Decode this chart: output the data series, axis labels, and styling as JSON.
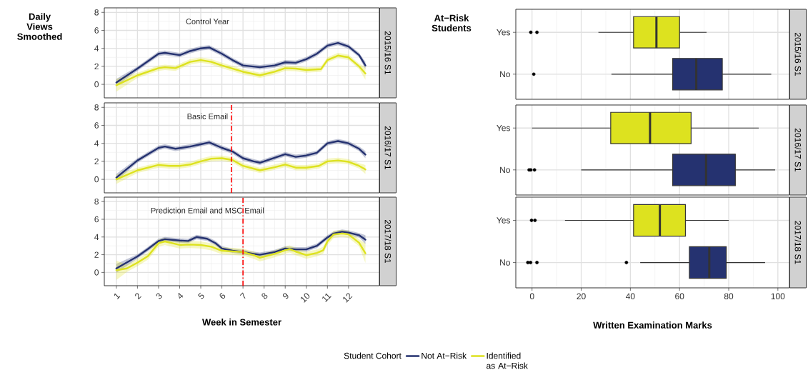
{
  "chart_data": [
    {
      "type": "line",
      "ylabel": "Daily Views Smoothed",
      "annotations": [
        "2015/16 S1",
        "Control Year"
      ],
      "xlim": [
        0.43,
        13.46
      ],
      "xticks": [
        1,
        2,
        3,
        4,
        5,
        6,
        7,
        8,
        9,
        10,
        11,
        12
      ],
      "ylim": [
        -1.5,
        8.5
      ],
      "yticks": [
        0,
        2,
        4,
        6,
        8
      ],
      "grid": true,
      "tick_labels": "y",
      "series": [
        {
          "color": "#253270",
          "x": [
            1,
            2,
            3,
            3.3,
            4,
            4.5,
            5,
            5.4,
            6,
            6.5,
            7,
            7.8,
            8.5,
            9,
            9.5,
            10,
            10.5,
            11,
            11.5,
            12,
            12.5,
            12.8
          ],
          "values": [
            0.2,
            1.75,
            3.4,
            3.5,
            3.25,
            3.7,
            4.0,
            4.1,
            3.4,
            2.7,
            2.1,
            1.9,
            2.1,
            2.45,
            2.4,
            2.8,
            3.4,
            4.3,
            4.6,
            4.2,
            3.25,
            2.1
          ],
          "lower": [
            -0.2,
            1.5,
            3.15,
            3.25,
            3.0,
            3.45,
            3.75,
            3.85,
            3.15,
            2.45,
            1.85,
            1.65,
            1.85,
            2.2,
            2.15,
            2.55,
            3.15,
            4.05,
            4.35,
            3.95,
            3.0,
            1.7
          ],
          "upper": [
            0.6,
            2.0,
            3.65,
            3.75,
            3.5,
            3.95,
            4.25,
            4.35,
            3.65,
            2.95,
            2.35,
            2.15,
            2.35,
            2.7,
            2.65,
            3.05,
            3.65,
            4.55,
            4.85,
            4.45,
            3.5,
            2.5
          ]
        },
        {
          "color": "#dde21f",
          "x": [
            1,
            2,
            3,
            3.3,
            3.8,
            4.5,
            5,
            5.5,
            6,
            7,
            7.8,
            8.5,
            9,
            9.5,
            10,
            10.7,
            11,
            11.5,
            12,
            12.5,
            12.8
          ],
          "values": [
            -0.1,
            1.0,
            1.8,
            1.9,
            1.8,
            2.5,
            2.7,
            2.5,
            2.1,
            1.4,
            1.0,
            1.4,
            1.8,
            1.75,
            1.6,
            1.7,
            2.7,
            3.2,
            3.0,
            2.0,
            1.2
          ],
          "lower": [
            -0.8,
            0.7,
            1.5,
            1.6,
            1.5,
            2.2,
            2.4,
            2.2,
            1.8,
            1.1,
            0.7,
            1.1,
            1.5,
            1.45,
            1.3,
            1.4,
            2.4,
            2.9,
            2.7,
            1.7,
            0.5
          ],
          "upper": [
            0.6,
            1.3,
            2.1,
            2.2,
            2.1,
            2.8,
            3.0,
            2.8,
            2.4,
            1.7,
            1.3,
            1.7,
            2.1,
            2.05,
            1.9,
            2.0,
            3.0,
            3.5,
            3.3,
            2.3,
            1.9
          ]
        }
      ]
    },
    {
      "type": "box",
      "orientation": "horizontal",
      "annotations": [
        "2015/16 S1"
      ],
      "ylabel": "At−Risk Students",
      "categories": [
        "Yes",
        "No"
      ],
      "colors": [
        "#dde21f",
        "#253270"
      ],
      "xlim": [
        -6.6,
        104.7
      ],
      "xticks": [
        0,
        20,
        40,
        60,
        80,
        100
      ],
      "grid": true,
      "tick_labels": "y",
      "boxes": [
        {
          "low": 27,
          "q1": 41.3,
          "median": 50.6,
          "q3": 60,
          "high": 71,
          "outliers": [
            -0.5,
            2
          ]
        },
        {
          "low": 32.3,
          "q1": 57.2,
          "median": 66.8,
          "q3": 77.4,
          "high": 97.3,
          "outliers": [
            0.7
          ]
        }
      ]
    },
    {
      "type": "line",
      "annotations": [
        "2016/17 S1",
        "Basic Email"
      ],
      "xlim": [
        0.43,
        13.46
      ],
      "xticks": [
        1,
        2,
        3,
        4,
        5,
        6,
        7,
        8,
        9,
        10,
        11,
        12
      ],
      "ylim": [
        -1.5,
        8.5
      ],
      "yticks": [
        0,
        2,
        4,
        6,
        8
      ],
      "grid": true,
      "tick_labels": "y",
      "ref_lines": [
        {
          "axis": "x",
          "value": 6.45,
          "color": "#ff0000",
          "line_style": "dashed"
        }
      ],
      "series": [
        {
          "color": "#253270",
          "x": [
            1,
            2,
            3,
            3.3,
            3.8,
            4.5,
            5,
            5.4,
            6,
            6.5,
            7,
            7.5,
            7.8,
            8.5,
            9,
            9.5,
            10,
            10.5,
            11,
            11.5,
            12,
            12.5,
            12.8
          ],
          "values": [
            0.2,
            2.1,
            3.5,
            3.65,
            3.4,
            3.65,
            3.9,
            4.1,
            3.5,
            3.1,
            2.35,
            2.0,
            1.85,
            2.4,
            2.8,
            2.5,
            2.65,
            2.95,
            4.0,
            4.25,
            4.0,
            3.4,
            2.75
          ],
          "lower": [
            -0.2,
            1.85,
            3.25,
            3.4,
            3.15,
            3.4,
            3.65,
            3.85,
            3.25,
            2.85,
            2.1,
            1.75,
            1.6,
            2.15,
            2.55,
            2.25,
            2.4,
            2.7,
            3.75,
            4.0,
            3.75,
            3.15,
            2.35
          ],
          "upper": [
            0.6,
            2.35,
            3.75,
            3.9,
            3.65,
            3.9,
            4.15,
            4.35,
            3.75,
            3.35,
            2.6,
            2.25,
            2.1,
            2.65,
            3.05,
            2.75,
            2.9,
            3.2,
            4.25,
            4.5,
            4.25,
            3.65,
            3.15
          ]
        },
        {
          "color": "#dde21f",
          "x": [
            1,
            2,
            3,
            3.5,
            4,
            4.5,
            5,
            5.5,
            6,
            6.5,
            7,
            7.8,
            8.5,
            9,
            9.5,
            10,
            10.6,
            11,
            11.5,
            12,
            12.5,
            12.8
          ],
          "values": [
            0,
            1.0,
            1.6,
            1.5,
            1.5,
            1.65,
            2.0,
            2.3,
            2.35,
            2.15,
            1.5,
            1.0,
            1.35,
            1.65,
            1.3,
            1.3,
            1.5,
            2.0,
            2.1,
            1.95,
            1.5,
            1.1
          ],
          "lower": [
            -0.5,
            0.7,
            1.3,
            1.2,
            1.2,
            1.35,
            1.7,
            2.0,
            2.05,
            1.85,
            1.2,
            0.7,
            1.05,
            1.35,
            1.0,
            1.0,
            1.2,
            1.7,
            1.8,
            1.65,
            1.2,
            0.6
          ],
          "upper": [
            0.5,
            1.3,
            1.9,
            1.8,
            1.8,
            1.95,
            2.3,
            2.6,
            2.65,
            2.45,
            1.8,
            1.3,
            1.65,
            1.95,
            1.6,
            1.6,
            1.8,
            2.3,
            2.4,
            2.25,
            1.8,
            1.6
          ]
        }
      ]
    },
    {
      "type": "box",
      "orientation": "horizontal",
      "annotations": [
        "2016/17 S1"
      ],
      "categories": [
        "Yes",
        "No"
      ],
      "colors": [
        "#dde21f",
        "#253270"
      ],
      "xlim": [
        -6.6,
        104.7
      ],
      "xticks": [
        0,
        20,
        40,
        60,
        80,
        100
      ],
      "grid": true,
      "tick_labels": "y",
      "boxes": [
        {
          "low": 0,
          "q1": 32,
          "median": 48,
          "q3": 64.7,
          "high": 92.2
        },
        {
          "low": 20,
          "q1": 57.2,
          "median": 70.8,
          "q3": 82.7,
          "high": 98.9,
          "outliers": [
            -1.2,
            -0.5,
            1
          ]
        }
      ]
    },
    {
      "type": "line",
      "xlabel": "Week in Semester",
      "annotations": [
        "2017/18 S1",
        "Prediction Email and MSC Email"
      ],
      "xlim": [
        0.43,
        13.46
      ],
      "xticks": [
        1,
        2,
        3,
        4,
        5,
        6,
        7,
        8,
        9,
        10,
        11,
        12
      ],
      "ylim": [
        -1.5,
        8.5
      ],
      "yticks": [
        0,
        2,
        4,
        6,
        8
      ],
      "grid": true,
      "legend": "bottom",
      "legend_title": "Student Cohort",
      "ref_lines": [
        {
          "axis": "x",
          "value": 7,
          "color": "#ff0000",
          "line_style": "dashed"
        }
      ],
      "series": [
        {
          "name": "Not At−Risk",
          "color": "#253270",
          "x": [
            1,
            2,
            2.5,
            3,
            3.3,
            4,
            4.4,
            4.8,
            5.3,
            5.7,
            6,
            6.5,
            7,
            7.5,
            7.8,
            8.5,
            9,
            9.5,
            10,
            10.5,
            11,
            11.3,
            11.7,
            12,
            12.5,
            12.8
          ],
          "values": [
            0.45,
            1.8,
            2.65,
            3.55,
            3.75,
            3.6,
            3.55,
            4.0,
            3.8,
            3.3,
            2.7,
            2.45,
            2.3,
            2.1,
            2.0,
            2.3,
            2.7,
            2.6,
            2.6,
            3.0,
            3.95,
            4.4,
            4.6,
            4.5,
            4.2,
            3.7
          ],
          "lower": [
            -0.05,
            1.55,
            2.4,
            3.3,
            3.5,
            3.35,
            3.3,
            3.75,
            3.55,
            3.05,
            2.45,
            2.2,
            2.05,
            1.85,
            1.75,
            2.05,
            2.45,
            2.35,
            2.35,
            2.75,
            3.7,
            4.15,
            4.35,
            4.25,
            3.95,
            3.2
          ],
          "upper": [
            0.95,
            2.05,
            2.9,
            3.8,
            4.0,
            3.85,
            3.8,
            4.25,
            4.05,
            3.55,
            2.95,
            2.7,
            2.55,
            2.35,
            2.25,
            2.55,
            2.95,
            2.85,
            2.85,
            3.25,
            4.2,
            4.65,
            4.85,
            4.75,
            4.45,
            4.2
          ]
        },
        {
          "name": "Identified as At−Risk",
          "color": "#dde21f",
          "x": [
            1,
            1.5,
            2,
            2.5,
            3,
            3.3,
            4,
            4.5,
            5,
            5.5,
            6,
            7,
            7.5,
            7.8,
            8.5,
            9,
            9.2,
            9.5,
            10,
            10.5,
            10.8,
            11,
            11.3,
            11.7,
            12,
            12.5,
            12.8
          ],
          "values": [
            0.25,
            0.45,
            1.1,
            1.85,
            3.3,
            3.5,
            3.1,
            3.15,
            3.1,
            2.9,
            2.45,
            2.3,
            1.95,
            1.65,
            2.1,
            2.5,
            2.65,
            2.35,
            1.95,
            2.2,
            2.5,
            3.5,
            4.3,
            4.4,
            4.3,
            3.35,
            2.15
          ],
          "lower": [
            -0.85,
            0.05,
            0.7,
            1.45,
            2.9,
            3.1,
            2.7,
            2.75,
            2.7,
            2.5,
            2.05,
            1.9,
            1.55,
            1.25,
            1.7,
            2.1,
            2.25,
            1.95,
            1.55,
            1.8,
            2.1,
            3.1,
            3.9,
            4.0,
            3.9,
            2.95,
            1.05
          ],
          "upper": [
            1.35,
            0.85,
            1.5,
            2.25,
            3.7,
            3.9,
            3.5,
            3.55,
            3.5,
            3.3,
            2.85,
            2.7,
            2.35,
            2.05,
            2.5,
            2.9,
            3.05,
            2.75,
            2.35,
            2.6,
            2.9,
            3.9,
            4.7,
            4.8,
            4.7,
            3.75,
            3.25
          ]
        }
      ]
    },
    {
      "type": "box",
      "orientation": "horizontal",
      "annotations": [
        "2017/18 S1"
      ],
      "xlabel": "Written Examination Marks",
      "categories": [
        "Yes",
        "No"
      ],
      "colors": [
        "#dde21f",
        "#253270"
      ],
      "xlim": [
        -6.6,
        104.7
      ],
      "xticks": [
        0,
        20,
        40,
        60,
        80,
        100
      ],
      "grid": true,
      "boxes": [
        {
          "low": 13.4,
          "q1": 41.3,
          "median": 52,
          "q3": 62.4,
          "high": 80,
          "outliers": [
            -0.2,
            1.2
          ]
        },
        {
          "low": 44,
          "q1": 64,
          "median": 72.1,
          "q3": 79,
          "high": 94.8,
          "outliers": [
            -1.7,
            -0.6,
            2,
            38.4
          ]
        }
      ]
    }
  ]
}
